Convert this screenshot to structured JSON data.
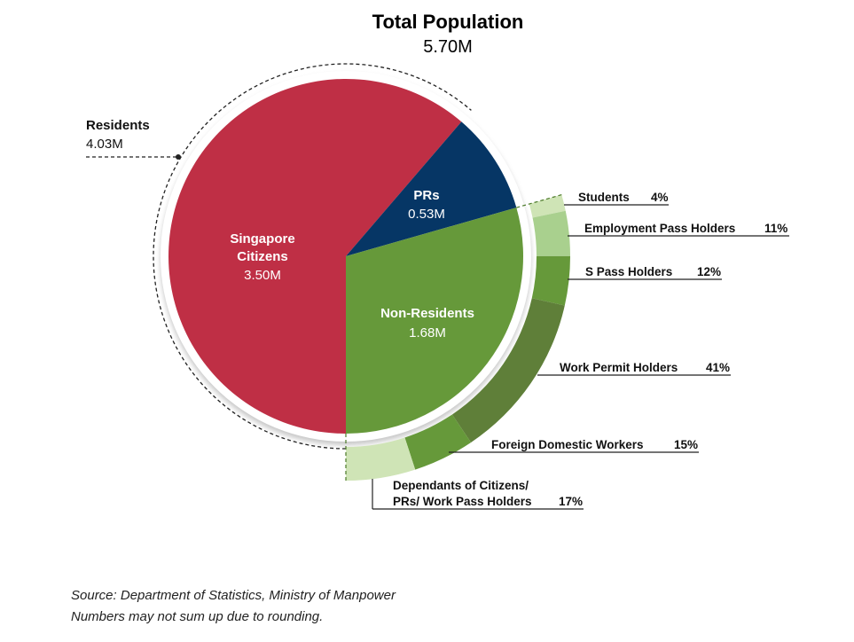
{
  "title": "Total Population",
  "subtitle": "5.70M",
  "colors": {
    "citizens": "#bf2f45",
    "prs": "#063665",
    "non_residents": "#66993a",
    "students": "#cfe4b6",
    "employment_pass": "#a9d08e",
    "s_pass": "#66993a",
    "work_permit": "#5f7f39",
    "foreign_domestic": "#66993a",
    "dependants": "#cfe4b6"
  },
  "chart_data": {
    "type": "pie",
    "title": "Total Population",
    "subtitle": "5.70M",
    "groups": [
      {
        "name": "Residents",
        "value_label": "4.03M",
        "value": 4.03
      }
    ],
    "slices": [
      {
        "key": "citizens",
        "line1": "Singapore",
        "line2": "Citizens",
        "value_label": "3.50M",
        "value": 3.5
      },
      {
        "key": "prs",
        "line1": "PRs",
        "line2": "",
        "value_label": "0.53M",
        "value": 0.53
      },
      {
        "key": "non_residents",
        "line1": "Non-Residents",
        "line2": "",
        "value_label": "1.68M",
        "value": 1.68
      }
    ],
    "breakdown": {
      "parent": "Non-Residents",
      "items": [
        {
          "key": "students",
          "name": "Students",
          "value_label": "4%",
          "value": 4
        },
        {
          "key": "employment_pass",
          "name": "Employment Pass Holders",
          "value_label": "11%",
          "value": 11
        },
        {
          "key": "s_pass",
          "name": "S Pass Holders",
          "value_label": "12%",
          "value": 12
        },
        {
          "key": "work_permit",
          "name": "Work Permit Holders",
          "value_label": "41%",
          "value": 41
        },
        {
          "key": "foreign_domestic",
          "name": "Foreign Domestic Workers",
          "value_label": "15%",
          "value": 15
        },
        {
          "key": "dependants",
          "name": "Dependants of Citizens/",
          "name2": "PRs/ Work Pass Holders",
          "value_label": "17%",
          "value": 17
        }
      ]
    }
  },
  "footer": {
    "source": "Source: Department of Statistics, Ministry of Manpower",
    "note": "Numbers may not sum up due to rounding."
  }
}
